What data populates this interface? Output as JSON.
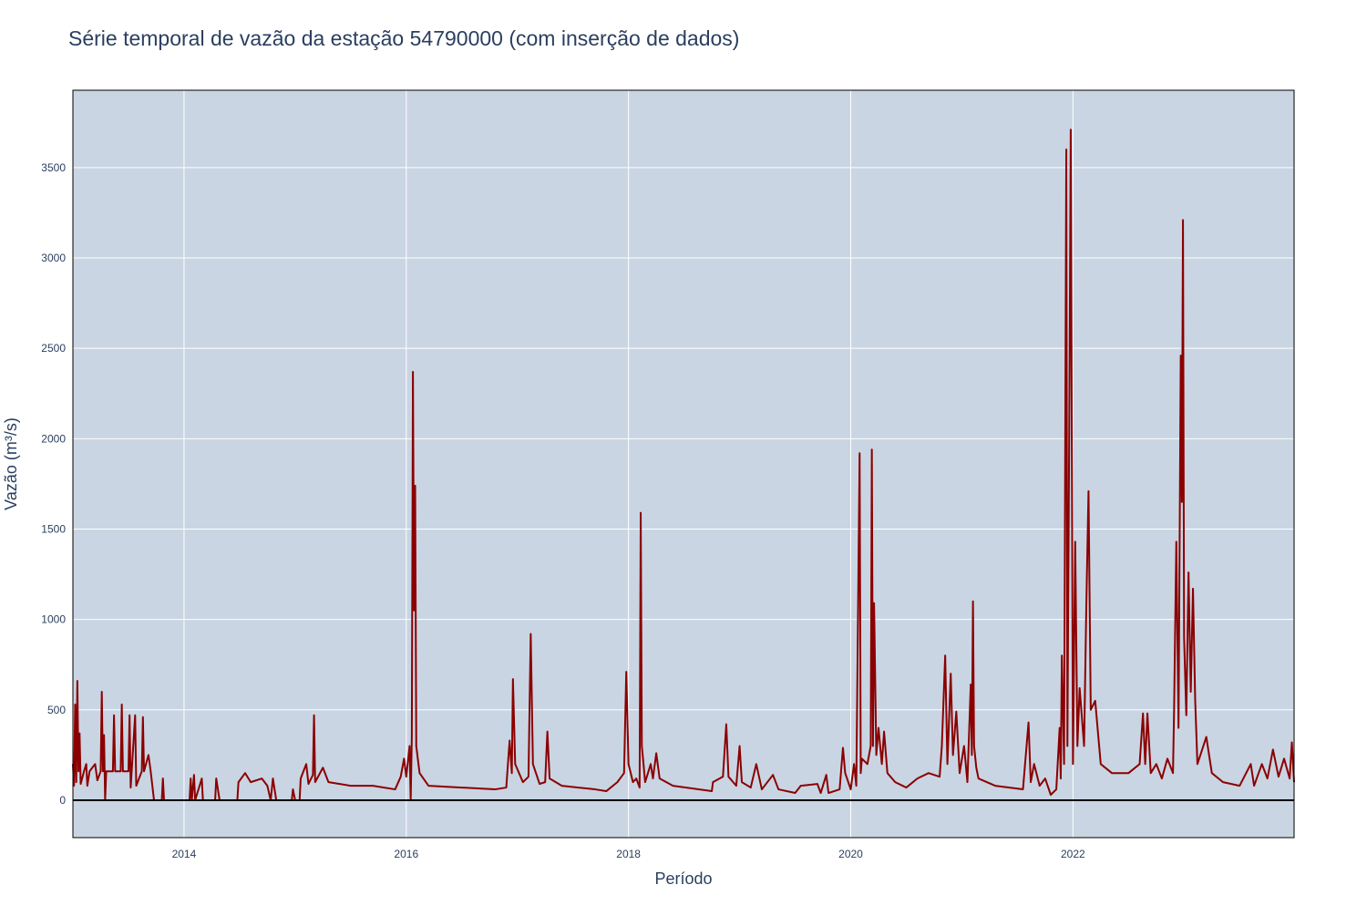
{
  "chart_data": {
    "type": "line",
    "title": "Série temporal de vazão da estação 54790000 (com inserção de dados)",
    "x_label": "Período",
    "y_label": "Vazão (m³/s)",
    "color": "#8b0000",
    "grid": true,
    "zeroline": true,
    "xlim": [
      2013.0,
      2023.99
    ],
    "ylim": [
      -207,
      3928
    ],
    "xticks": [
      2014,
      2016,
      2018,
      2020,
      2022
    ],
    "yticks": [
      0,
      500,
      1000,
      1500,
      2000,
      2500,
      3000,
      3500
    ],
    "x": [
      2013.0,
      2013.01,
      2013.02,
      2013.03,
      2013.04,
      2013.05,
      2013.06,
      2013.07,
      2013.1,
      2013.12,
      2013.13,
      2013.15,
      2013.2,
      2013.22,
      2013.25,
      2013.26,
      2013.27,
      2013.28,
      2013.29,
      2013.3,
      2013.36,
      2013.37,
      2013.38,
      2013.43,
      2013.44,
      2013.45,
      2013.5,
      2013.51,
      2013.52,
      2013.56,
      2013.57,
      2013.62,
      2013.63,
      2013.64,
      2013.68,
      2013.7,
      2013.73,
      2013.8,
      2013.81,
      2013.82,
      2014.05,
      2014.06,
      2014.07,
      2014.09,
      2014.1,
      2014.16,
      2014.17,
      2014.28,
      2014.29,
      2014.32,
      2014.48,
      2014.49,
      2014.55,
      2014.6,
      2014.7,
      2014.75,
      2014.78,
      2014.8,
      2014.83,
      2014.97,
      2014.98,
      2015.0,
      2015.04,
      2015.05,
      2015.1,
      2015.12,
      2015.16,
      2015.17,
      2015.18,
      2015.25,
      2015.3,
      2015.5,
      2015.7,
      2015.9,
      2015.95,
      2015.98,
      2016.0,
      2016.03,
      2016.04,
      2016.05,
      2016.06,
      2016.07,
      2016.08,
      2016.09,
      2016.12,
      2016.2,
      2016.5,
      2016.8,
      2016.9,
      2016.93,
      2016.95,
      2016.96,
      2016.98,
      2017.05,
      2017.1,
      2017.12,
      2017.14,
      2017.2,
      2017.25,
      2017.27,
      2017.29,
      2017.4,
      2017.7,
      2017.8,
      2017.9,
      2017.96,
      2017.98,
      2018.0,
      2018.04,
      2018.07,
      2018.1,
      2018.11,
      2018.12,
      2018.15,
      2018.2,
      2018.22,
      2018.25,
      2018.28,
      2018.4,
      2018.75,
      2018.76,
      2018.85,
      2018.88,
      2018.9,
      2018.97,
      2019.0,
      2019.02,
      2019.1,
      2019.15,
      2019.2,
      2019.3,
      2019.35,
      2019.5,
      2019.55,
      2019.7,
      2019.73,
      2019.78,
      2019.8,
      2019.9,
      2019.93,
      2019.95,
      2020.0,
      2020.03,
      2020.05,
      2020.08,
      2020.09,
      2020.1,
      2020.15,
      2020.18,
      2020.19,
      2020.2,
      2020.21,
      2020.23,
      2020.25,
      2020.28,
      2020.3,
      2020.33,
      2020.4,
      2020.5,
      2020.6,
      2020.7,
      2020.8,
      2020.82,
      2020.85,
      2020.87,
      2020.9,
      2020.92,
      2020.95,
      2020.98,
      2021.02,
      2021.05,
      2021.08,
      2021.09,
      2021.1,
      2021.11,
      2021.13,
      2021.15,
      2021.3,
      2021.55,
      2021.6,
      2021.62,
      2021.65,
      2021.7,
      2021.75,
      2021.8,
      2021.85,
      2021.88,
      2021.89,
      2021.9,
      2021.92,
      2021.94,
      2021.95,
      2021.97,
      2021.98,
      2022.0,
      2022.02,
      2022.04,
      2022.06,
      2022.1,
      2022.12,
      2022.14,
      2022.16,
      2022.2,
      2022.25,
      2022.35,
      2022.5,
      2022.6,
      2022.63,
      2022.65,
      2022.67,
      2022.7,
      2022.75,
      2022.8,
      2022.85,
      2022.9,
      2022.91,
      2022.93,
      2022.95,
      2022.97,
      2022.98,
      2022.99,
      2023.0,
      2023.02,
      2023.04,
      2023.06,
      2023.08,
      2023.1,
      2023.12,
      2023.2,
      2023.25,
      2023.35,
      2023.5,
      2023.6,
      2023.63,
      2023.7,
      2023.75,
      2023.8,
      2023.85,
      2023.9,
      2023.95,
      2023.97,
      2023.99
    ],
    "values": [
      200,
      80,
      530,
      100,
      660,
      160,
      370,
      90,
      160,
      200,
      80,
      160,
      200,
      110,
      160,
      600,
      160,
      360,
      0,
      160,
      160,
      470,
      160,
      160,
      530,
      160,
      160,
      470,
      70,
      470,
      80,
      160,
      460,
      160,
      250,
      160,
      0,
      0,
      120,
      0,
      0,
      120,
      0,
      140,
      0,
      120,
      0,
      0,
      120,
      0,
      0,
      100,
      150,
      100,
      120,
      80,
      0,
      120,
      0,
      0,
      60,
      0,
      0,
      120,
      200,
      90,
      140,
      470,
      100,
      180,
      100,
      80,
      80,
      60,
      130,
      230,
      130,
      300,
      0,
      350,
      2370,
      1050,
      1740,
      300,
      150,
      80,
      70,
      60,
      70,
      330,
      150,
      670,
      200,
      100,
      130,
      920,
      200,
      90,
      100,
      380,
      120,
      80,
      60,
      50,
      100,
      150,
      710,
      200,
      100,
      120,
      70,
      1590,
      300,
      100,
      200,
      120,
      260,
      120,
      80,
      50,
      100,
      130,
      420,
      130,
      80,
      300,
      100,
      70,
      200,
      60,
      140,
      60,
      40,
      80,
      90,
      40,
      140,
      40,
      60,
      290,
      150,
      60,
      200,
      80,
      1920,
      150,
      230,
      200,
      300,
      1940,
      300,
      1090,
      250,
      400,
      200,
      380,
      150,
      100,
      70,
      120,
      150,
      130,
      300,
      800,
      200,
      700,
      250,
      490,
      150,
      300,
      100,
      640,
      250,
      1100,
      300,
      180,
      120,
      80,
      60,
      430,
      100,
      200,
      80,
      120,
      30,
      60,
      400,
      120,
      800,
      200,
      3600,
      300,
      2440,
      3710,
      200,
      1430,
      300,
      620,
      300,
      1070,
      1710,
      500,
      550,
      200,
      150,
      150,
      200,
      480,
      200,
      480,
      150,
      200,
      120,
      230,
      150,
      500,
      1430,
      400,
      2460,
      1650,
      3210,
      900,
      470,
      1260,
      600,
      1170,
      550,
      200,
      350,
      150,
      100,
      80,
      200,
      80,
      200,
      120,
      280,
      130,
      230,
      120,
      320,
      100
    ]
  }
}
